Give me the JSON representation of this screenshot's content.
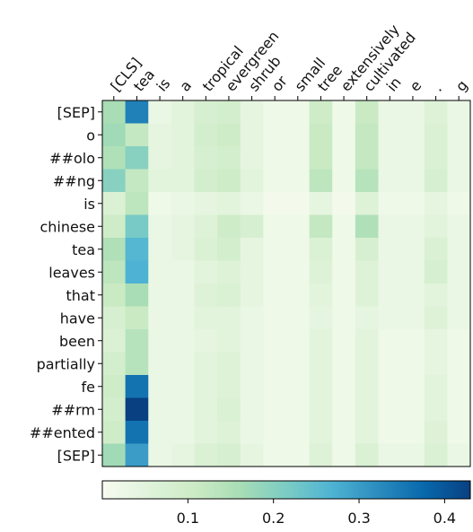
{
  "chart_data": {
    "type": "heatmap",
    "title": "",
    "x_labels": [
      "[CLS]",
      "tea",
      "is",
      "a",
      "tropical",
      "evergreen",
      "shrub",
      "or",
      "small",
      "tree",
      "extensively",
      "cultivated",
      "in",
      "e",
      ".",
      "g"
    ],
    "y_labels": [
      "[SEP]",
      "o",
      "##olo",
      "##ng",
      "is",
      "chinese",
      "tea",
      "leaves",
      "that",
      "have",
      "been",
      "partially",
      "fe",
      "##rm",
      "##ented",
      "[SEP]"
    ],
    "values": [
      [
        0.16,
        0.34,
        0.03,
        0.05,
        0.08,
        0.09,
        0.04,
        0.02,
        0.02,
        0.1,
        0.02,
        0.11,
        0.03,
        0.03,
        0.06,
        0.03
      ],
      [
        0.17,
        0.12,
        0.04,
        0.05,
        0.09,
        0.1,
        0.04,
        0.02,
        0.02,
        0.11,
        0.02,
        0.12,
        0.03,
        0.03,
        0.07,
        0.03
      ],
      [
        0.15,
        0.2,
        0.04,
        0.05,
        0.08,
        0.09,
        0.04,
        0.02,
        0.02,
        0.11,
        0.02,
        0.12,
        0.03,
        0.03,
        0.07,
        0.03
      ],
      [
        0.2,
        0.12,
        0.05,
        0.05,
        0.09,
        0.1,
        0.05,
        0.02,
        0.02,
        0.13,
        0.02,
        0.14,
        0.03,
        0.03,
        0.08,
        0.03
      ],
      [
        0.07,
        0.13,
        0.02,
        0.03,
        0.04,
        0.05,
        0.03,
        0.01,
        0.01,
        0.04,
        0.01,
        0.06,
        0.02,
        0.02,
        0.04,
        0.02
      ],
      [
        0.1,
        0.22,
        0.03,
        0.04,
        0.06,
        0.1,
        0.08,
        0.02,
        0.02,
        0.12,
        0.02,
        0.15,
        0.03,
        0.03,
        0.05,
        0.03
      ],
      [
        0.15,
        0.26,
        0.03,
        0.04,
        0.07,
        0.09,
        0.04,
        0.02,
        0.02,
        0.07,
        0.02,
        0.08,
        0.03,
        0.03,
        0.07,
        0.03
      ],
      [
        0.13,
        0.27,
        0.03,
        0.03,
        0.05,
        0.06,
        0.04,
        0.02,
        0.02,
        0.06,
        0.02,
        0.06,
        0.03,
        0.03,
        0.08,
        0.03
      ],
      [
        0.11,
        0.16,
        0.03,
        0.03,
        0.06,
        0.07,
        0.04,
        0.02,
        0.02,
        0.05,
        0.02,
        0.06,
        0.03,
        0.03,
        0.05,
        0.03
      ],
      [
        0.08,
        0.11,
        0.03,
        0.03,
        0.05,
        0.05,
        0.03,
        0.02,
        0.02,
        0.04,
        0.02,
        0.04,
        0.03,
        0.03,
        0.06,
        0.03
      ],
      [
        0.07,
        0.14,
        0.03,
        0.03,
        0.04,
        0.05,
        0.03,
        0.02,
        0.02,
        0.05,
        0.02,
        0.05,
        0.02,
        0.02,
        0.04,
        0.02
      ],
      [
        0.09,
        0.14,
        0.03,
        0.03,
        0.05,
        0.06,
        0.03,
        0.02,
        0.02,
        0.05,
        0.02,
        0.05,
        0.02,
        0.02,
        0.04,
        0.02
      ],
      [
        0.1,
        0.36,
        0.03,
        0.03,
        0.05,
        0.06,
        0.03,
        0.02,
        0.02,
        0.05,
        0.02,
        0.05,
        0.02,
        0.02,
        0.05,
        0.02
      ],
      [
        0.09,
        0.43,
        0.03,
        0.03,
        0.05,
        0.07,
        0.03,
        0.02,
        0.02,
        0.05,
        0.02,
        0.05,
        0.02,
        0.02,
        0.05,
        0.02
      ],
      [
        0.1,
        0.36,
        0.03,
        0.03,
        0.05,
        0.06,
        0.03,
        0.02,
        0.02,
        0.05,
        0.02,
        0.05,
        0.02,
        0.02,
        0.06,
        0.02
      ],
      [
        0.17,
        0.3,
        0.03,
        0.04,
        0.07,
        0.08,
        0.04,
        0.02,
        0.02,
        0.06,
        0.02,
        0.07,
        0.03,
        0.03,
        0.07,
        0.03
      ]
    ],
    "colormap": "GnBu",
    "colorbar": {
      "range": [
        0.0,
        0.43
      ],
      "ticks": [
        0.1,
        0.2,
        0.3,
        0.4
      ],
      "tick_labels": [
        "0.1",
        "0.2",
        "0.3",
        "0.4"
      ],
      "orientation": "horizontal"
    },
    "grid": false
  }
}
